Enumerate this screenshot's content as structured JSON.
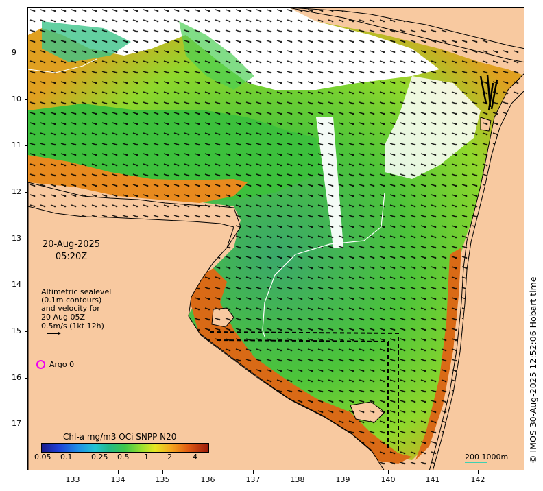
{
  "map": {
    "date": "20-Aug-2025",
    "time": "05:20Z",
    "legend_lines": [
      "Altimetric sealevel",
      "(0.1m contours)",
      "and velocity for",
      "20 Aug 05Z",
      "0.5m/s (1kt 12h)"
    ],
    "argo_label": "Argo 0",
    "argo_color": "#ee00ee",
    "colorbar_title": "Chl-a mg/m3 OCi SNPP N20",
    "colorbar_ticks": [
      "0.05",
      "0.1",
      "0.25",
      "0.5",
      "1",
      "2",
      "4"
    ],
    "scale_label": "200  1000m",
    "credit": "© IMOS 30-Aug-2025 12:52:06 Hobart time",
    "y_ticks": [
      "9",
      "10",
      "11",
      "12",
      "13",
      "14",
      "15",
      "16",
      "17"
    ],
    "x_ticks": [
      "133",
      "134",
      "135",
      "136",
      "137",
      "138",
      "139",
      "140",
      "141",
      "142"
    ],
    "colors": {
      "land": "#f8c9a0",
      "ocean_high": "#c8541a",
      "ocean_mid": "#3fc64a",
      "ocean_low": "#22b8a0",
      "no_data": "#ffffff"
    }
  }
}
